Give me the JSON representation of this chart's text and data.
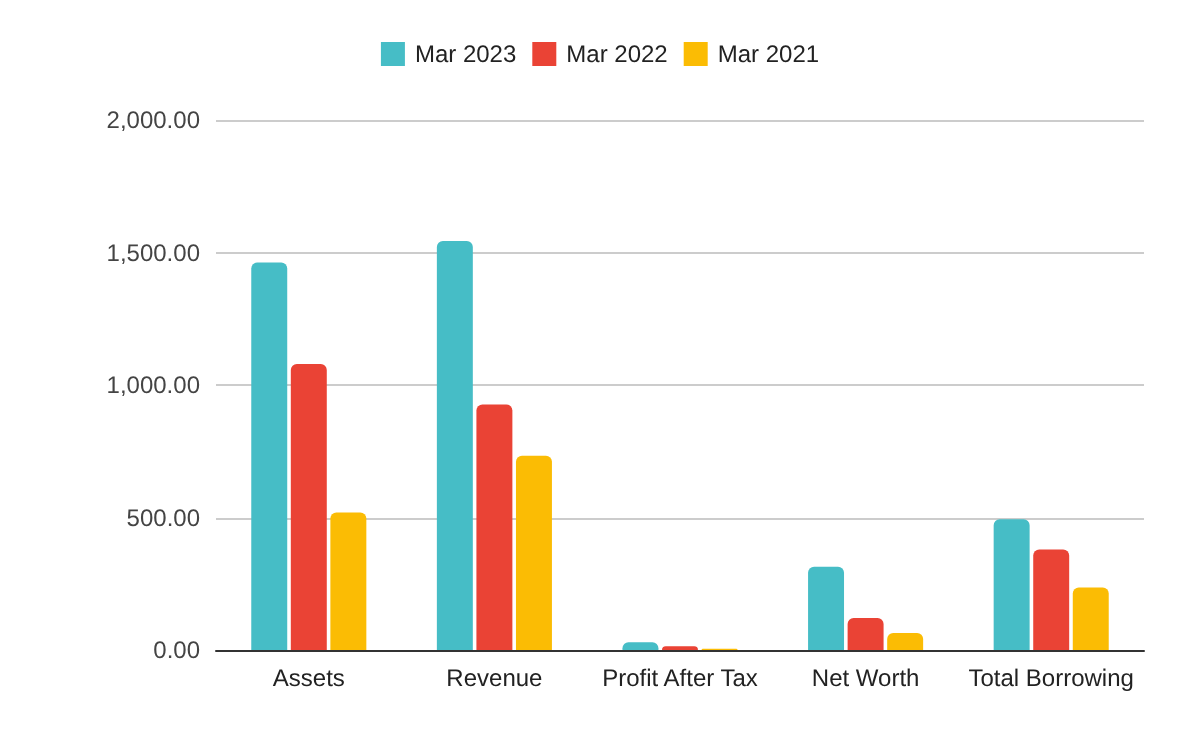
{
  "chart_data": {
    "type": "bar",
    "categories": [
      "Assets",
      "Revenue",
      "Profit After Tax",
      "Net Worth",
      "Total Borrowing"
    ],
    "series": [
      {
        "name": "Mar 2023",
        "color": "#46bdc6",
        "values": [
          1462,
          1543,
          29,
          314,
          493
        ]
      },
      {
        "name": "Mar 2022",
        "color": "#ea4335",
        "values": [
          1079,
          926,
          14,
          121,
          379
        ]
      },
      {
        "name": "Mar 2021",
        "color": "#fbbc04",
        "values": [
          519,
          733,
          5,
          64,
          236
        ]
      }
    ],
    "ylim": [
      0,
      2000
    ],
    "yticks": [
      {
        "value": 0,
        "label": "0.00"
      },
      {
        "value": 500,
        "label": "500.00"
      },
      {
        "value": 1000,
        "label": "1,000.00"
      },
      {
        "value": 1500,
        "label": "1,500.00"
      },
      {
        "value": 2000,
        "label": "2,000.00"
      }
    ],
    "grid": "y",
    "legend": "top"
  }
}
